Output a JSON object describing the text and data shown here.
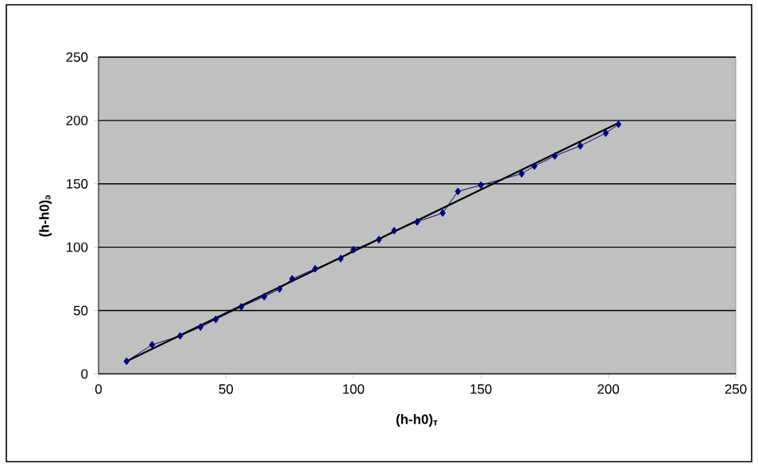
{
  "chart_data": {
    "type": "line",
    "xlabel": "(h-h0)$_{т}$",
    "ylabel": "(h-h0)$_{э}$",
    "xlim": [
      0,
      250
    ],
    "ylim": [
      0,
      250
    ],
    "xticks": [
      0,
      50,
      100,
      150,
      200,
      250
    ],
    "yticks": [
      0,
      50,
      100,
      150,
      200,
      250
    ],
    "grid": "y",
    "series": [
      {
        "marker": "diamond",
        "color": "#000080",
        "x": [
          11,
          21,
          32,
          40,
          46,
          56,
          65,
          71,
          76,
          85,
          95,
          100,
          110,
          116,
          125,
          135,
          141,
          150,
          166,
          171,
          179,
          189,
          199,
          204
        ],
        "values": [
          10,
          23,
          30,
          37,
          43,
          53,
          61,
          67,
          75,
          83,
          91,
          98,
          106,
          113,
          120,
          127,
          144,
          149,
          158,
          164,
          172,
          180,
          190,
          197
        ]
      },
      {
        "marker": "none",
        "color": "#000000",
        "x": [
          11,
          204
        ],
        "values": [
          10,
          198
        ]
      }
    ]
  }
}
